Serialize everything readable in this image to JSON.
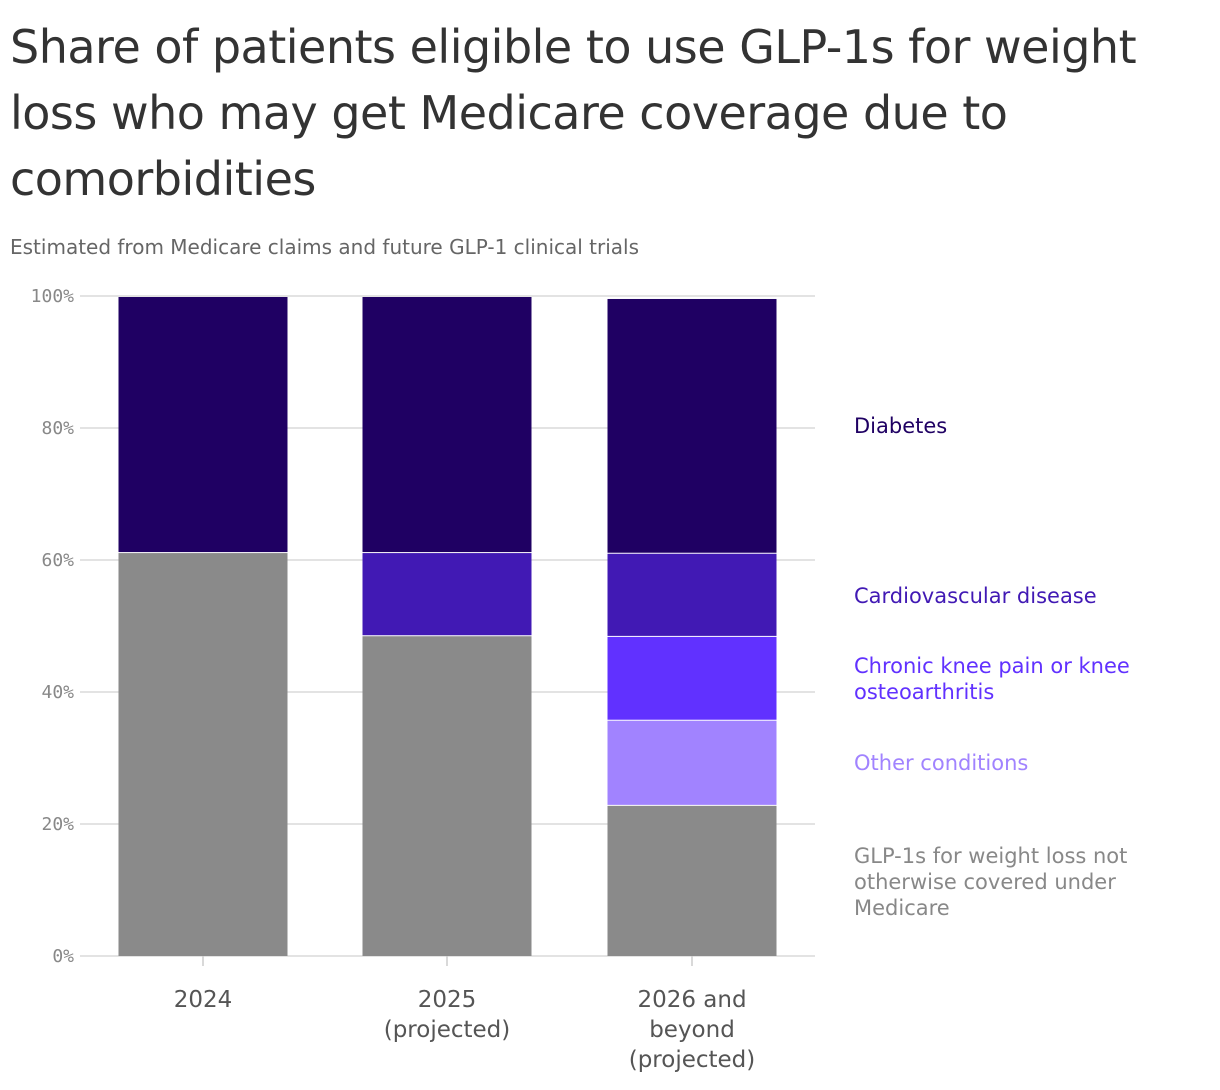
{
  "chart_data": {
    "type": "bar",
    "stacked": true,
    "title": "Share of patients eligible to use GLP-1s for weight loss who may get Medicare coverage due to comorbidities",
    "subtitle": "Estimated from Medicare claims and future GLP-1 clinical trials",
    "categories": [
      [
        "2024"
      ],
      [
        "2025",
        "(projected)"
      ],
      [
        "2026 and",
        "beyond",
        "(projected)"
      ]
    ],
    "ylim": [
      0,
      100
    ],
    "yticks": [
      "0%",
      "20%",
      "40%",
      "60%",
      "80%",
      "100%"
    ],
    "grid": true,
    "legend_placement": "right",
    "series": [
      {
        "name": "GLP-1s for weight loss not otherwise covered under Medicare",
        "label_lines": [
          "GLP-1s for weight loss not",
          "otherwise covered under",
          "Medicare"
        ],
        "color": "#8a8a8a",
        "label_color": "#888888",
        "values": [
          61.2,
          48.6,
          22.9
        ]
      },
      {
        "name": "Other conditions",
        "label_lines": [
          "Other conditions"
        ],
        "color": "#a183ff",
        "label_color": "#a183ff",
        "values": [
          0,
          0,
          12.9
        ]
      },
      {
        "name": "Chronic knee pain or knee osteoarthritis",
        "label_lines": [
          "Chronic knee pain or knee",
          "osteoarthritis"
        ],
        "color": "#6131ff",
        "label_color": "#6131ff",
        "values": [
          0,
          0,
          12.7
        ]
      },
      {
        "name": "Cardiovascular disease",
        "label_lines": [
          "Cardiovascular disease"
        ],
        "color": "#4119b4",
        "label_color": "#4119b4",
        "values": [
          0,
          12.6,
          12.6
        ]
      },
      {
        "name": "Diabetes",
        "label_lines": [
          "Diabetes"
        ],
        "color": "#1f0063",
        "label_color": "#1f0063",
        "values": [
          38.8,
          38.8,
          38.6
        ]
      }
    ]
  }
}
